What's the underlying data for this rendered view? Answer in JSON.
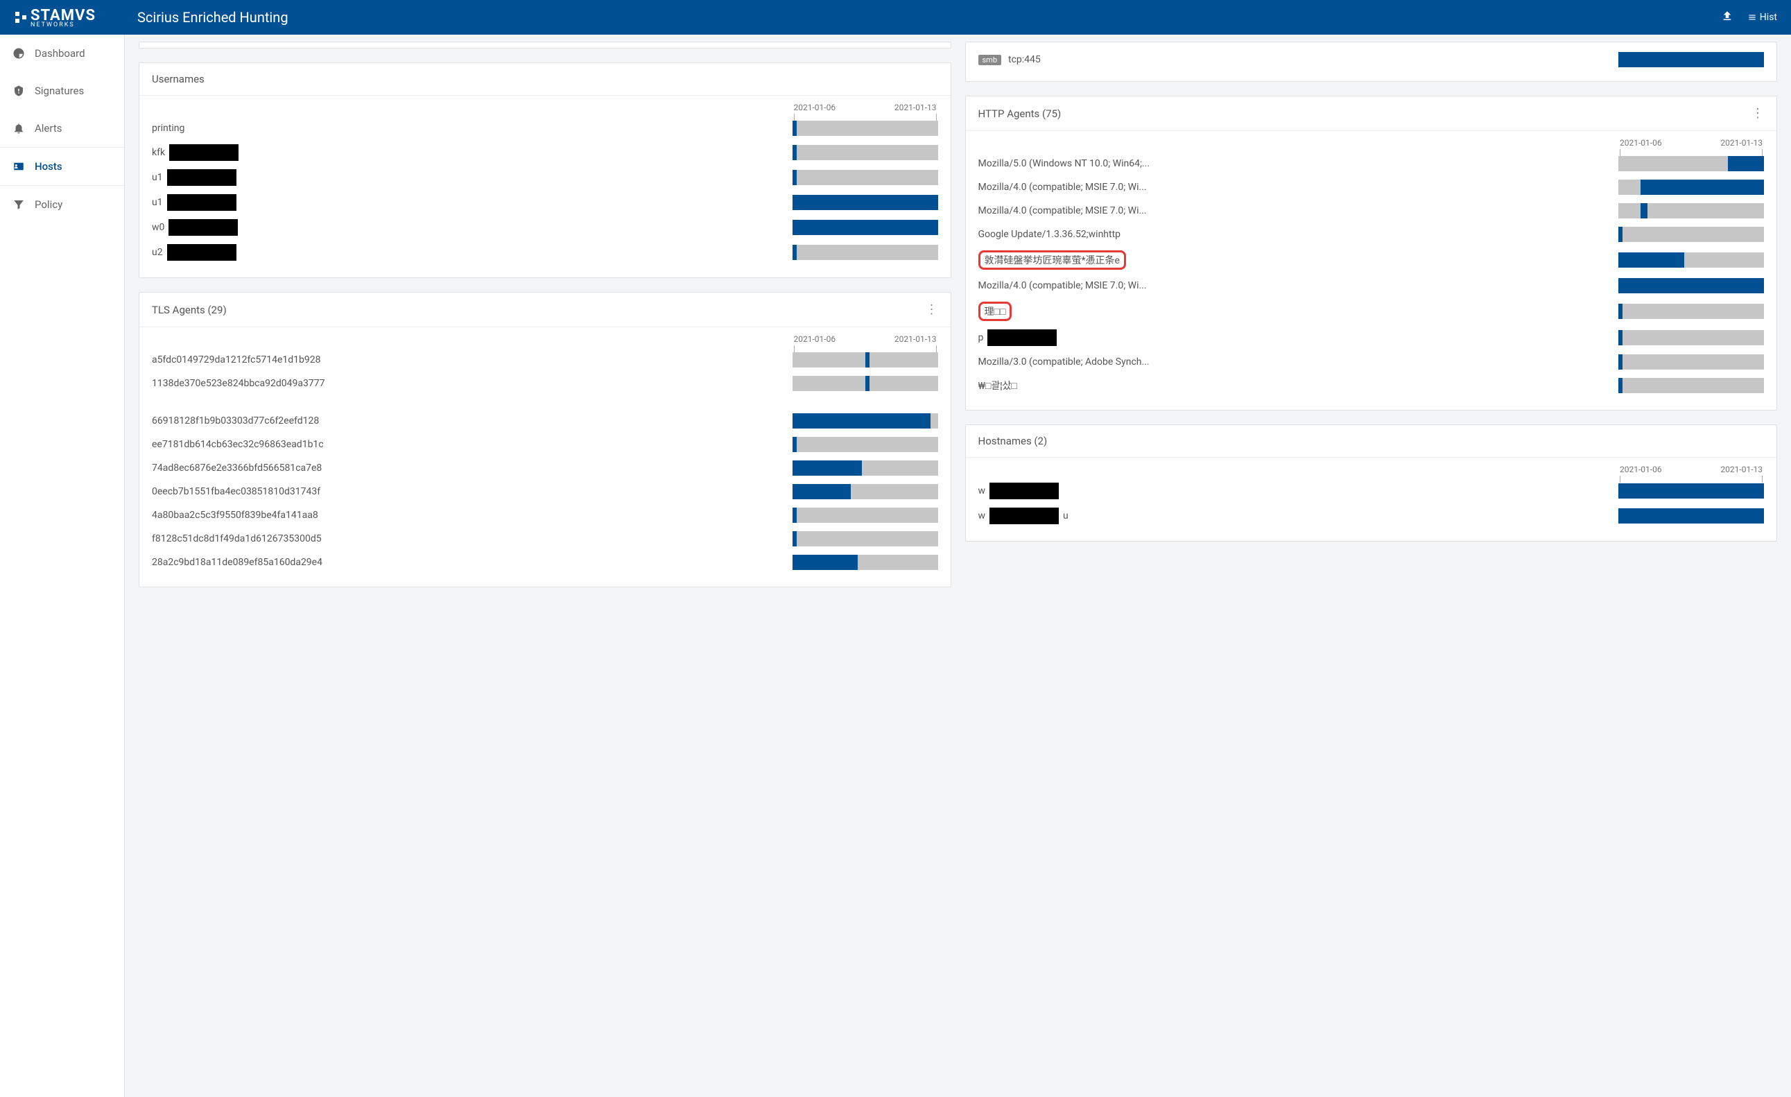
{
  "accent_color": "#005093",
  "bar_bg_color": "#c6c6c6",
  "highlight_color": "#e53935",
  "header": {
    "logo_main": "STAMVS",
    "logo_sub": "NETWORKS",
    "title": "Scirius Enriched Hunting",
    "right_label": "Hist"
  },
  "nav": {
    "items": [
      {
        "key": "dashboard",
        "label": "Dashboard",
        "icon": "dashboard"
      },
      {
        "key": "signatures",
        "label": "Signatures",
        "icon": "shield"
      },
      {
        "key": "alerts",
        "label": "Alerts",
        "icon": "bell"
      },
      {
        "key": "hosts",
        "label": "Hosts",
        "icon": "id",
        "active": true
      },
      {
        "key": "policy",
        "label": "Policy",
        "icon": "filter"
      }
    ]
  },
  "date_axis": {
    "start": "2021-01-06",
    "end": "2021-01-13"
  },
  "panels": {
    "proto_top": {
      "rows": [
        {
          "chip": "smb",
          "label": "tcp:445",
          "bar": {
            "start": 0,
            "end": 100
          }
        }
      ]
    },
    "usernames": {
      "title": "Usernames",
      "rows": [
        {
          "label": "printing",
          "redact": false,
          "bar": {
            "start": 0,
            "end": 3
          }
        },
        {
          "label": "kfk",
          "redact": true,
          "bar": {
            "start": 0,
            "end": 3
          }
        },
        {
          "label": "u1",
          "redact": true,
          "bar": {
            "start": 0,
            "end": 3
          }
        },
        {
          "label": "u1",
          "redact": true,
          "bar": {
            "start": 0,
            "end": 100
          }
        },
        {
          "label": "w0",
          "redact": true,
          "bar": {
            "start": 0,
            "end": 100
          }
        },
        {
          "label": "u2",
          "redact": true,
          "bar": {
            "start": 0,
            "end": 3
          }
        }
      ]
    },
    "tls_agents": {
      "title": "TLS Agents (29)",
      "rows": [
        {
          "label": "a5fdc0149729da1212fc5714e1d1b928",
          "bar": {
            "start": 50,
            "end": 53
          }
        },
        {
          "label": "1138de370e523e824bbca92d049a3777",
          "bar": {
            "start": 50,
            "end": 53
          }
        },
        {
          "label": "",
          "spacer": true
        },
        {
          "label": "66918128f1b9b03303d77c6f2eefd128",
          "bar": {
            "start": 0,
            "end": 95
          }
        },
        {
          "label": "ee7181db614cb63ec32c96863ead1b1c",
          "bar": {
            "start": 0,
            "end": 3
          }
        },
        {
          "label": "74ad8ec6876e2e3366bfd566581ca7e8",
          "bar": {
            "start": 0,
            "end": 48
          }
        },
        {
          "label": "0eecb7b1551fba4ec03851810d31743f",
          "bar": {
            "start": 0,
            "end": 40
          }
        },
        {
          "label": "4a80baa2c5c3f9550f839be4fa141aa8",
          "bar": {
            "start": 0,
            "end": 3
          }
        },
        {
          "label": "f8128c51dc8d1f49da1d6126735300d5",
          "bar": {
            "start": 0,
            "end": 3
          }
        },
        {
          "label": "28a2c9bd18a11de089ef85a160da29e4",
          "bar": {
            "start": 0,
            "end": 45
          }
        }
      ]
    },
    "http_agents": {
      "title": "HTTP Agents (75)",
      "rows": [
        {
          "label": "Mozilla/5.0 (Windows NT 10.0; Win64;...",
          "bar": {
            "start": 75,
            "end": 100
          }
        },
        {
          "label": "Mozilla/4.0 (compatible; MSIE 7.0; Wi...",
          "bar": {
            "start": 15,
            "end": 100
          }
        },
        {
          "label": "Mozilla/4.0 (compatible; MSIE 7.0; Wi...",
          "bar": {
            "start": 15,
            "end": 20
          }
        },
        {
          "label": "Google Update/1.3.36.52;winhttp",
          "bar": {
            "start": 0,
            "end": 3
          }
        },
        {
          "label": "敦潸硅盤挙坊匠琬辜萤*慿正条e",
          "highlight": true,
          "bar": {
            "start": 0,
            "end": 45
          }
        },
        {
          "label": "Mozilla/4.0 (compatible; MSIE 7.0; Wi...",
          "bar": {
            "start": 0,
            "end": 100
          }
        },
        {
          "label": "理□□",
          "highlight": true,
          "bar": {
            "start": 0,
            "end": 3
          }
        },
        {
          "label": "p",
          "redact": true,
          "bar": {
            "start": 0,
            "end": 3
          }
        },
        {
          "label": "Mozilla/3.0 (compatible; Adobe Synch...",
          "bar": {
            "start": 0,
            "end": 3
          }
        },
        {
          "label": "₩□괄¦샀□",
          "bar": {
            "start": 0,
            "end": 3
          }
        }
      ]
    },
    "hostnames": {
      "title": "Hostnames (2)",
      "rows": [
        {
          "label": "w",
          "redact": true,
          "redact_suffix": "",
          "bar": {
            "start": 0,
            "end": 100
          }
        },
        {
          "label": "w",
          "redact": true,
          "redact_suffix": "u",
          "bar": {
            "start": 0,
            "end": 100
          }
        }
      ]
    }
  }
}
